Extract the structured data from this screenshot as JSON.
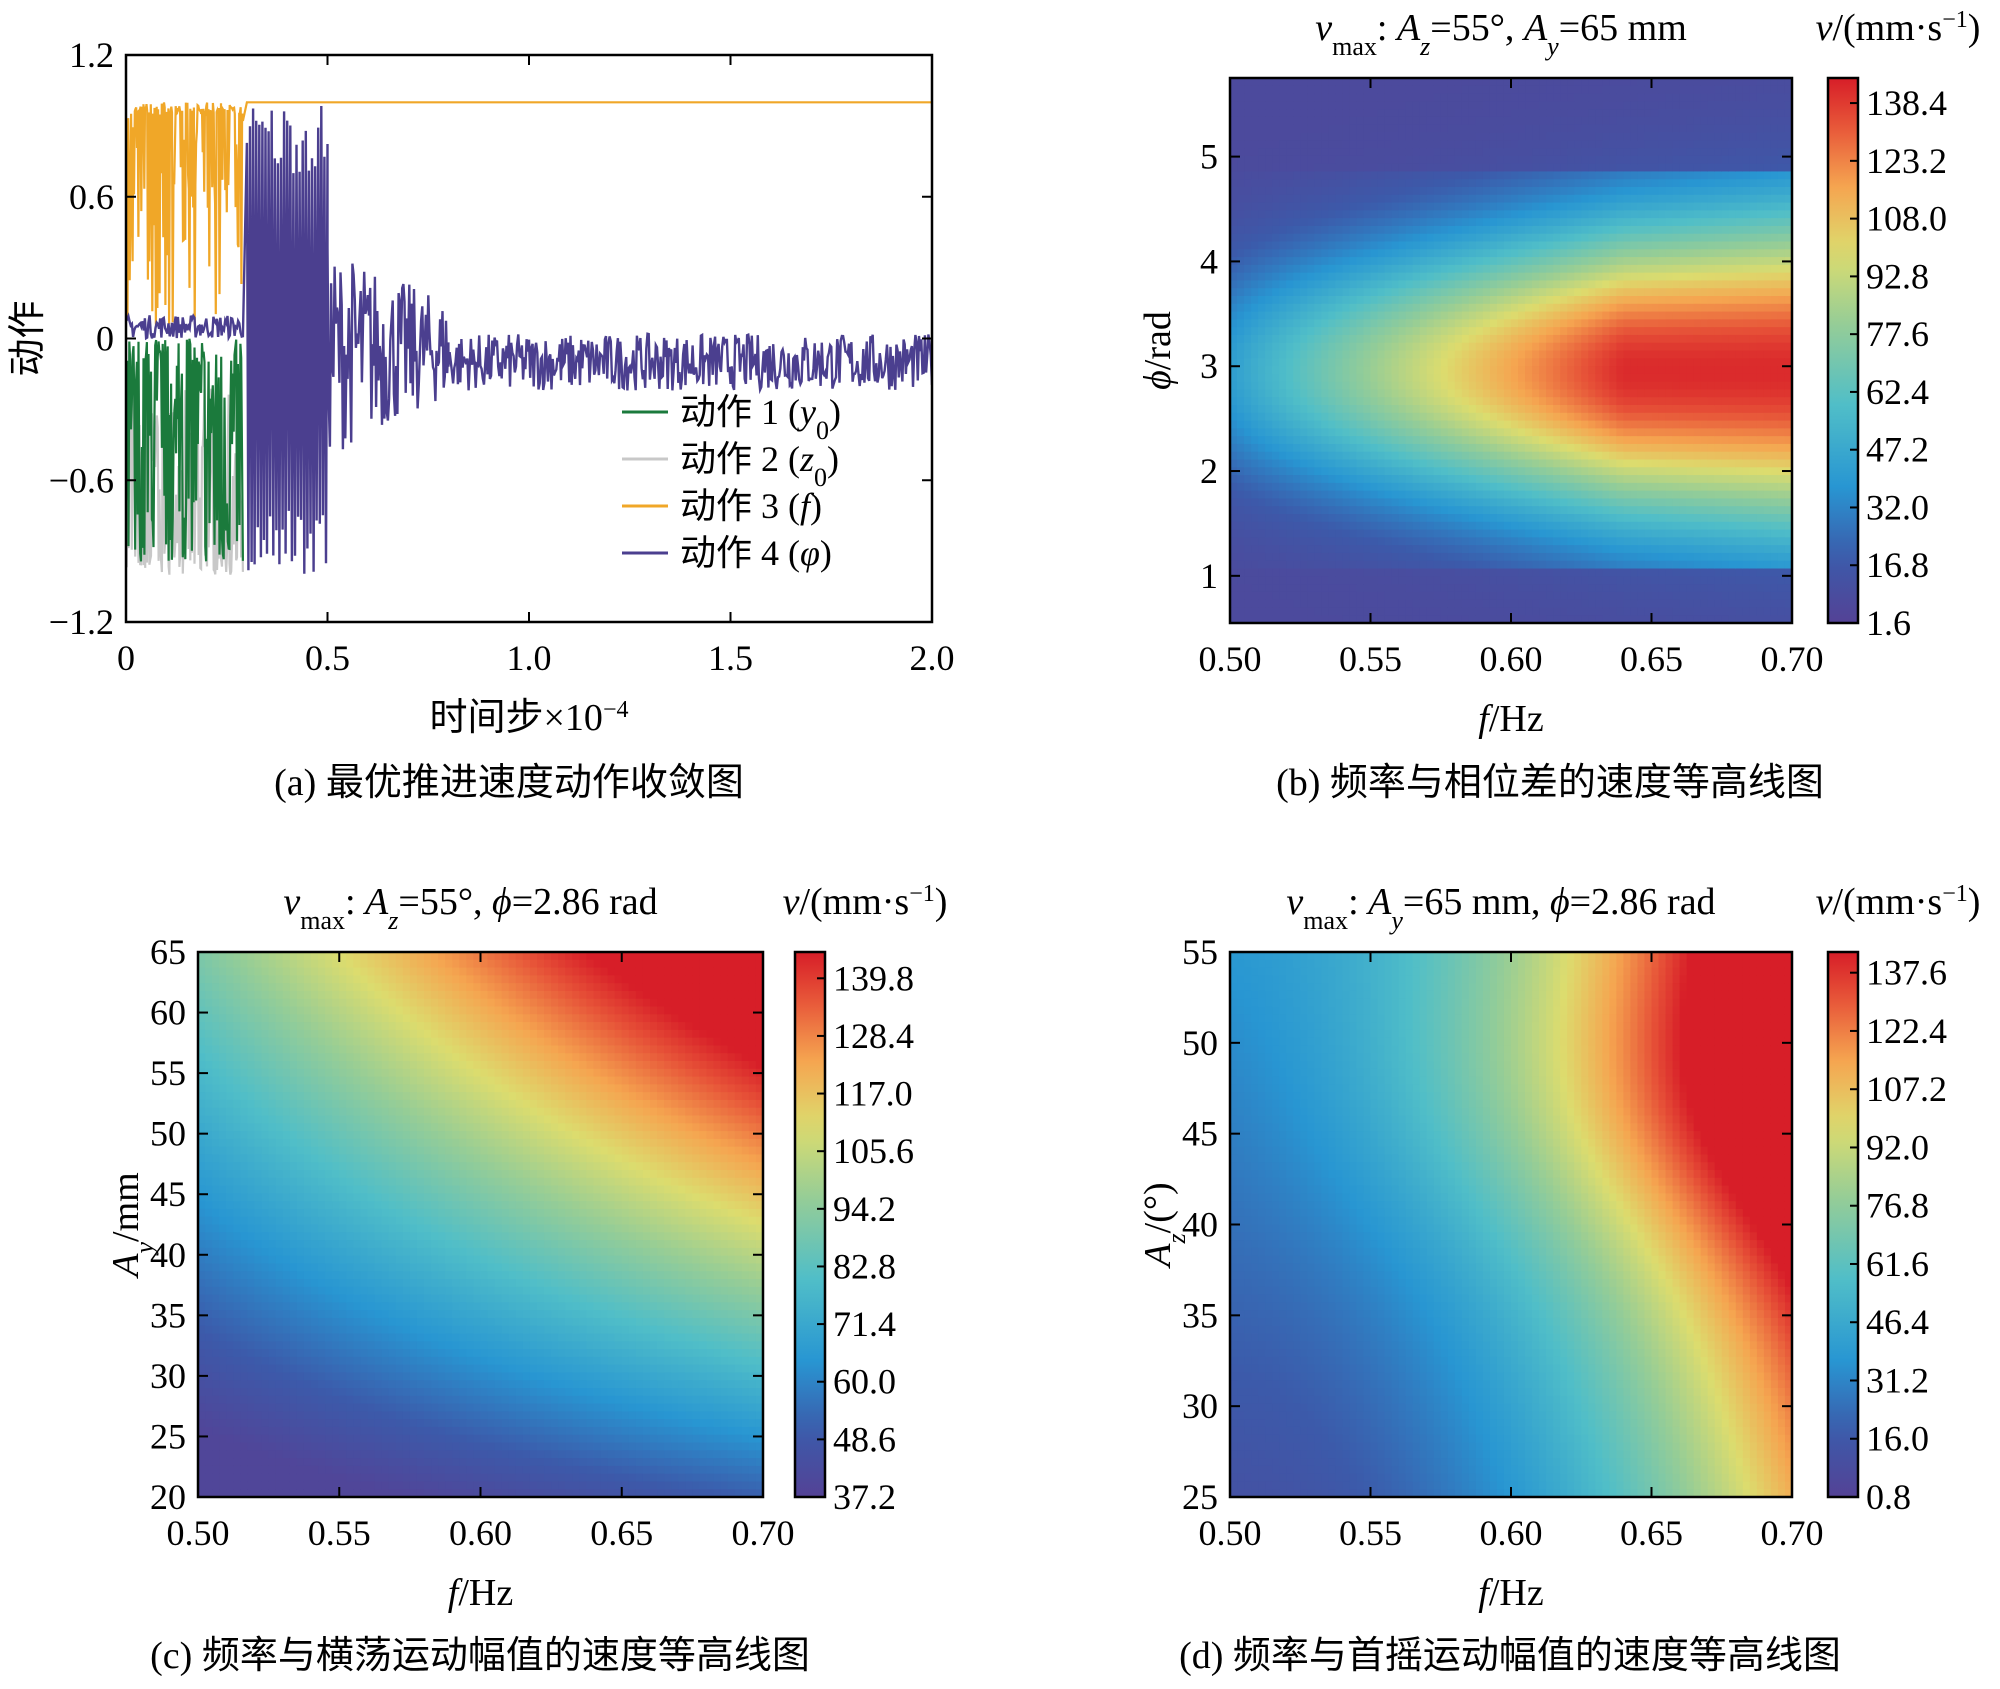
{
  "chart_data": [
    {
      "type": "line",
      "caption": "(a)  最优推进速度动作收敛图",
      "xlabel": "时间步×10⁻⁴",
      "ylabel": "动作",
      "xlim": [
        0,
        2.0
      ],
      "ylim": [
        -1.2,
        1.2
      ],
      "xticks": [
        "0",
        "0.5",
        "1.0",
        "1.5",
        "2.0"
      ],
      "yticks": [
        "−1.2",
        "−0.6",
        "0",
        "0.6",
        "1.2"
      ],
      "legend_position": "lower-right",
      "series": [
        {
          "name": "动作 1 (y₀)",
          "color": "#1b7a3c",
          "segments": [
            {
              "x_end": 0.29,
              "value_min": -0.95,
              "value_max": 0.02
            }
          ],
          "final_value": 0.02
        },
        {
          "name": "动作 2 (z₀)",
          "color": "#c8c8c8",
          "segments": [
            {
              "x_end": 0.29,
              "value_min": -1.0,
              "value_max": -0.2
            }
          ],
          "final_value": null
        },
        {
          "name": "动作 3 (f)",
          "color": "#f0a728",
          "segments": [
            {
              "x_end": 0.29,
              "value_min": 0.05,
              "value_max": 1.0
            }
          ],
          "final_value": 1.0
        },
        {
          "name": "动作 4 (φ)",
          "color": "#4b3f8f",
          "segments": [
            {
              "x_start": 0.0,
              "x_end": 0.29,
              "center": 0.05,
              "amp": 0.05
            },
            {
              "x_start": 0.3,
              "x_end": 0.5,
              "center": 0.0,
              "amp": 1.0
            },
            {
              "x_start": 0.5,
              "x_end": 0.8,
              "center": -0.05,
              "amp": 0.45
            },
            {
              "x_start": 0.8,
              "x_end": 2.0,
              "center": -0.1,
              "amp": 0.12
            }
          ]
        }
      ]
    },
    {
      "type": "heatmap",
      "caption": "(b)  频率与相位差的速度等高线图",
      "title": "vmax: Az=55°, Ay=65 mm",
      "xlabel": "f/Hz",
      "ylabel": "ϕ/rad",
      "colorbar_label": "v/(mm·s⁻¹)",
      "xlim": [
        0.5,
        0.7
      ],
      "ylim": [
        0.55,
        5.75
      ],
      "xticks": [
        "0.50",
        "0.55",
        "0.60",
        "0.65",
        "0.70"
      ],
      "yticks": [
        "1",
        "2",
        "3",
        "4",
        "5"
      ],
      "colorbar_ticks": [
        "1.6",
        "16.8",
        "32.0",
        "47.2",
        "62.4",
        "77.6",
        "92.8",
        "108.0",
        "123.2",
        "138.4"
      ],
      "value_range": [
        1.6,
        145.0
      ]
    },
    {
      "type": "heatmap",
      "caption": "(c)  频率与横荡运动幅值的速度等高线图",
      "title": "vmax: Az=55°, ϕ=2.86 rad",
      "xlabel": "f/Hz",
      "ylabel": "Ay/mm",
      "colorbar_label": "v/(mm·s⁻¹)",
      "xlim": [
        0.5,
        0.7
      ],
      "ylim": [
        20,
        65
      ],
      "xticks": [
        "0.50",
        "0.55",
        "0.60",
        "0.65",
        "0.70"
      ],
      "yticks": [
        "20",
        "25",
        "30",
        "35",
        "40",
        "45",
        "50",
        "55",
        "60",
        "65"
      ],
      "colorbar_ticks": [
        "37.2",
        "48.6",
        "60.0",
        "71.4",
        "82.8",
        "94.2",
        "105.6",
        "117.0",
        "128.4",
        "139.8"
      ],
      "value_range": [
        37.2,
        145.0
      ]
    },
    {
      "type": "heatmap",
      "caption": "(d)  频率与首摇运动幅值的速度等高线图",
      "title": "vmax: Ay=65 mm, ϕ=2.86 rad",
      "xlabel": "f/Hz",
      "ylabel": "Az/(°)",
      "colorbar_label": "v/(mm·s⁻¹)",
      "xlim": [
        0.5,
        0.7
      ],
      "ylim": [
        25,
        55
      ],
      "xticks": [
        "0.50",
        "0.55",
        "0.60",
        "0.65",
        "0.70"
      ],
      "yticks": [
        "25",
        "30",
        "35",
        "40",
        "45",
        "50",
        "55"
      ],
      "colorbar_ticks": [
        "0.8",
        "16.0",
        "31.2",
        "46.4",
        "61.6",
        "76.8",
        "92.0",
        "107.2",
        "122.4",
        "137.6"
      ],
      "value_range": [
        0.8,
        143.0
      ]
    }
  ]
}
